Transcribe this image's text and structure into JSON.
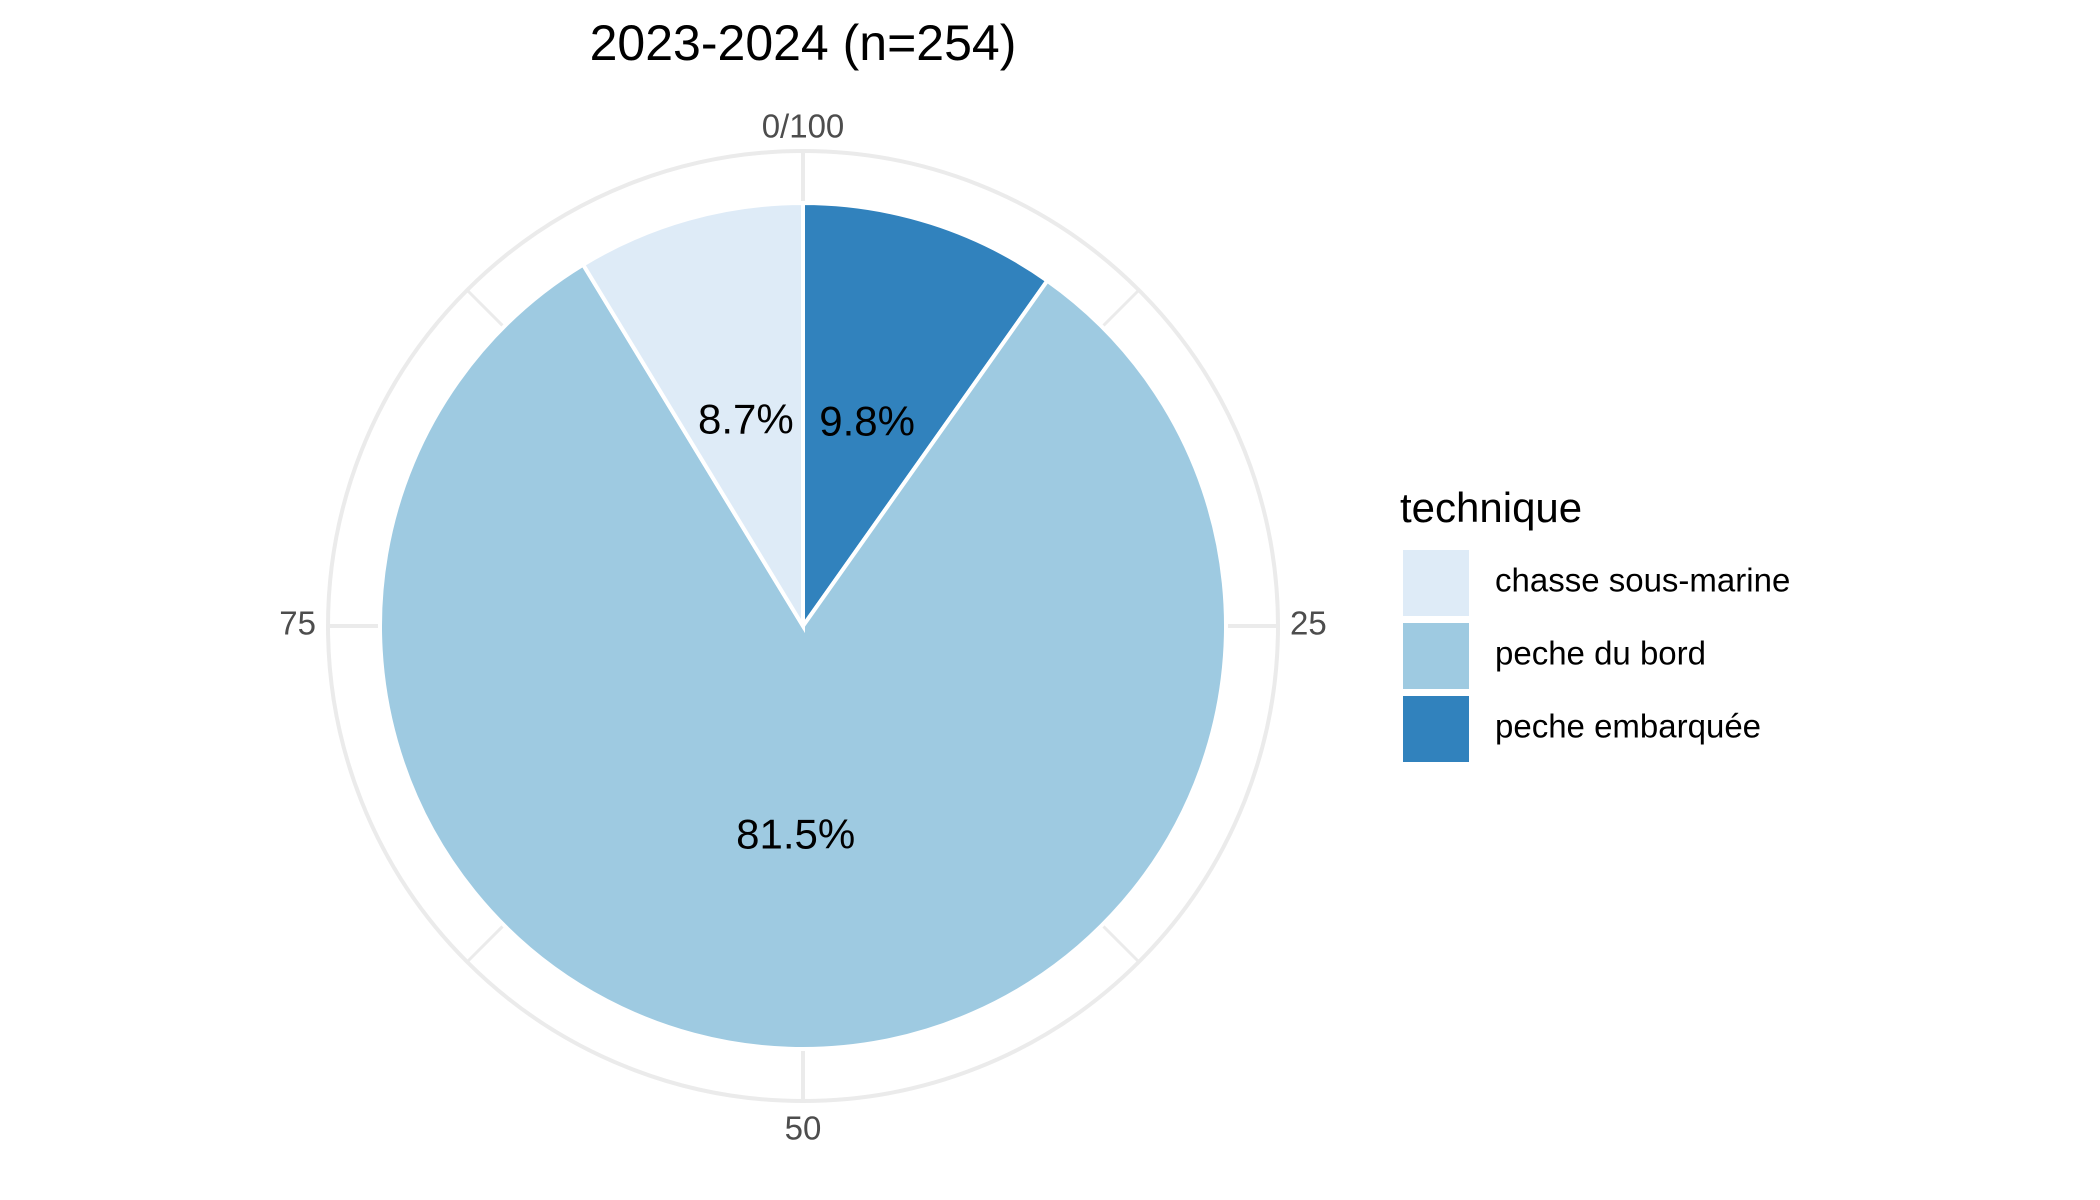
{
  "chart_data": {
    "type": "pie",
    "title": "2023-2024 (n=254)",
    "coord": "polar",
    "start_angle": "top",
    "direction": "clockwise",
    "theta_ticks": [
      {
        "value": 0,
        "label": "0/100"
      },
      {
        "value": 25,
        "label": "25"
      },
      {
        "value": 50,
        "label": "50"
      },
      {
        "value": 75,
        "label": "75"
      }
    ],
    "theta_range": [
      0,
      100
    ],
    "grid": true,
    "legend": {
      "title": "technique",
      "placement": "right"
    },
    "slices": [
      {
        "category": "peche embarquée",
        "value": 9.8,
        "label": "9.8%",
        "color": "#3182bd"
      },
      {
        "category": "peche du bord",
        "value": 81.5,
        "label": "81.5%",
        "color": "#9ecae1"
      },
      {
        "category": "chasse sous-marine",
        "value": 8.7,
        "label": "8.7%",
        "color": "#deebf7"
      }
    ],
    "legend_entries": [
      {
        "label": "chasse sous-marine",
        "color": "#deebf7"
      },
      {
        "label": "peche du bord",
        "color": "#9ecae1"
      },
      {
        "label": "peche embarquée",
        "color": "#3182bd"
      }
    ]
  },
  "colors": {
    "grid": "#ebebeb",
    "background": "#ffffff"
  }
}
